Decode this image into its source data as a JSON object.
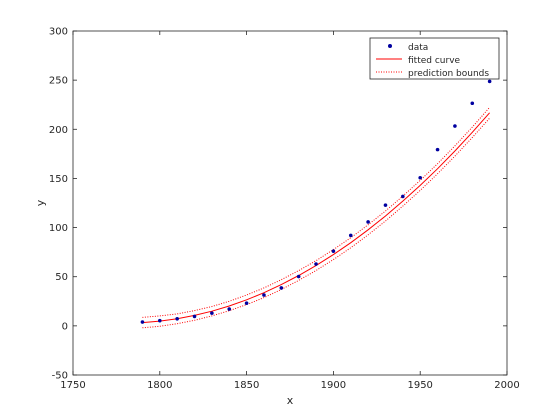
{
  "chart_data": {
    "type": "scatter",
    "title": "",
    "xlabel": "x",
    "ylabel": "y",
    "xlim": [
      1750,
      2000
    ],
    "ylim": [
      -50,
      300
    ],
    "xticks": [
      1750,
      1800,
      1850,
      1900,
      1950,
      2000
    ],
    "yticks": [
      -50,
      0,
      50,
      100,
      150,
      200,
      250,
      300
    ],
    "grid": false,
    "legend_position": "top-right",
    "legend": {
      "data": "data",
      "fit": "fitted curve",
      "bounds": "prediction bounds"
    },
    "series": [
      {
        "name": "data",
        "kind": "markers",
        "color": "#0000a0",
        "x": [
          1790,
          1800,
          1810,
          1820,
          1830,
          1840,
          1850,
          1860,
          1870,
          1880,
          1890,
          1900,
          1910,
          1920,
          1930,
          1940,
          1950,
          1960,
          1970,
          1980,
          1990
        ],
        "y": [
          3.9,
          5.3,
          7.2,
          9.6,
          12.9,
          17.1,
          23.1,
          31.4,
          38.6,
          50.2,
          62.9,
          76.0,
          92.0,
          105.7,
          122.8,
          131.7,
          150.7,
          179.3,
          203.3,
          226.5,
          248.7
        ]
      },
      {
        "name": "fitted curve",
        "kind": "line",
        "color": "#ff0000",
        "x": [
          1790,
          1800,
          1810,
          1820,
          1830,
          1840,
          1850,
          1860,
          1870,
          1880,
          1890,
          1900,
          1910,
          1920,
          1930,
          1940,
          1950,
          1960,
          1970,
          1980,
          1990
        ],
        "y": [
          3.3,
          4.8,
          7.2,
          10.6,
          14.9,
          20.2,
          26.5,
          33.7,
          42.0,
          51.2,
          61.3,
          72.5,
          84.6,
          97.7,
          111.8,
          126.9,
          142.9,
          159.9,
          177.9,
          196.9,
          216.8
        ]
      },
      {
        "name": "prediction bounds",
        "kind": "dotted",
        "color": "#ff0000",
        "x": [
          1790,
          1800,
          1810,
          1820,
          1830,
          1840,
          1850,
          1860,
          1870,
          1880,
          1890,
          1900,
          1910,
          1920,
          1930,
          1940,
          1950,
          1960,
          1970,
          1980,
          1990
        ],
        "lower": [
          -2.0,
          -0.5,
          2.2,
          5.7,
          10.1,
          15.4,
          21.6,
          28.8,
          37.0,
          46.2,
          56.3,
          67.4,
          79.5,
          92.6,
          106.7,
          121.8,
          137.8,
          154.8,
          172.7,
          191.6,
          211.3
        ],
        "upper": [
          8.6,
          10.1,
          12.2,
          15.5,
          19.7,
          25.0,
          31.4,
          38.6,
          47.0,
          56.2,
          66.3,
          77.6,
          89.7,
          102.8,
          116.9,
          132.0,
          148.0,
          165.0,
          183.1,
          202.2,
          222.3
        ]
      }
    ]
  }
}
